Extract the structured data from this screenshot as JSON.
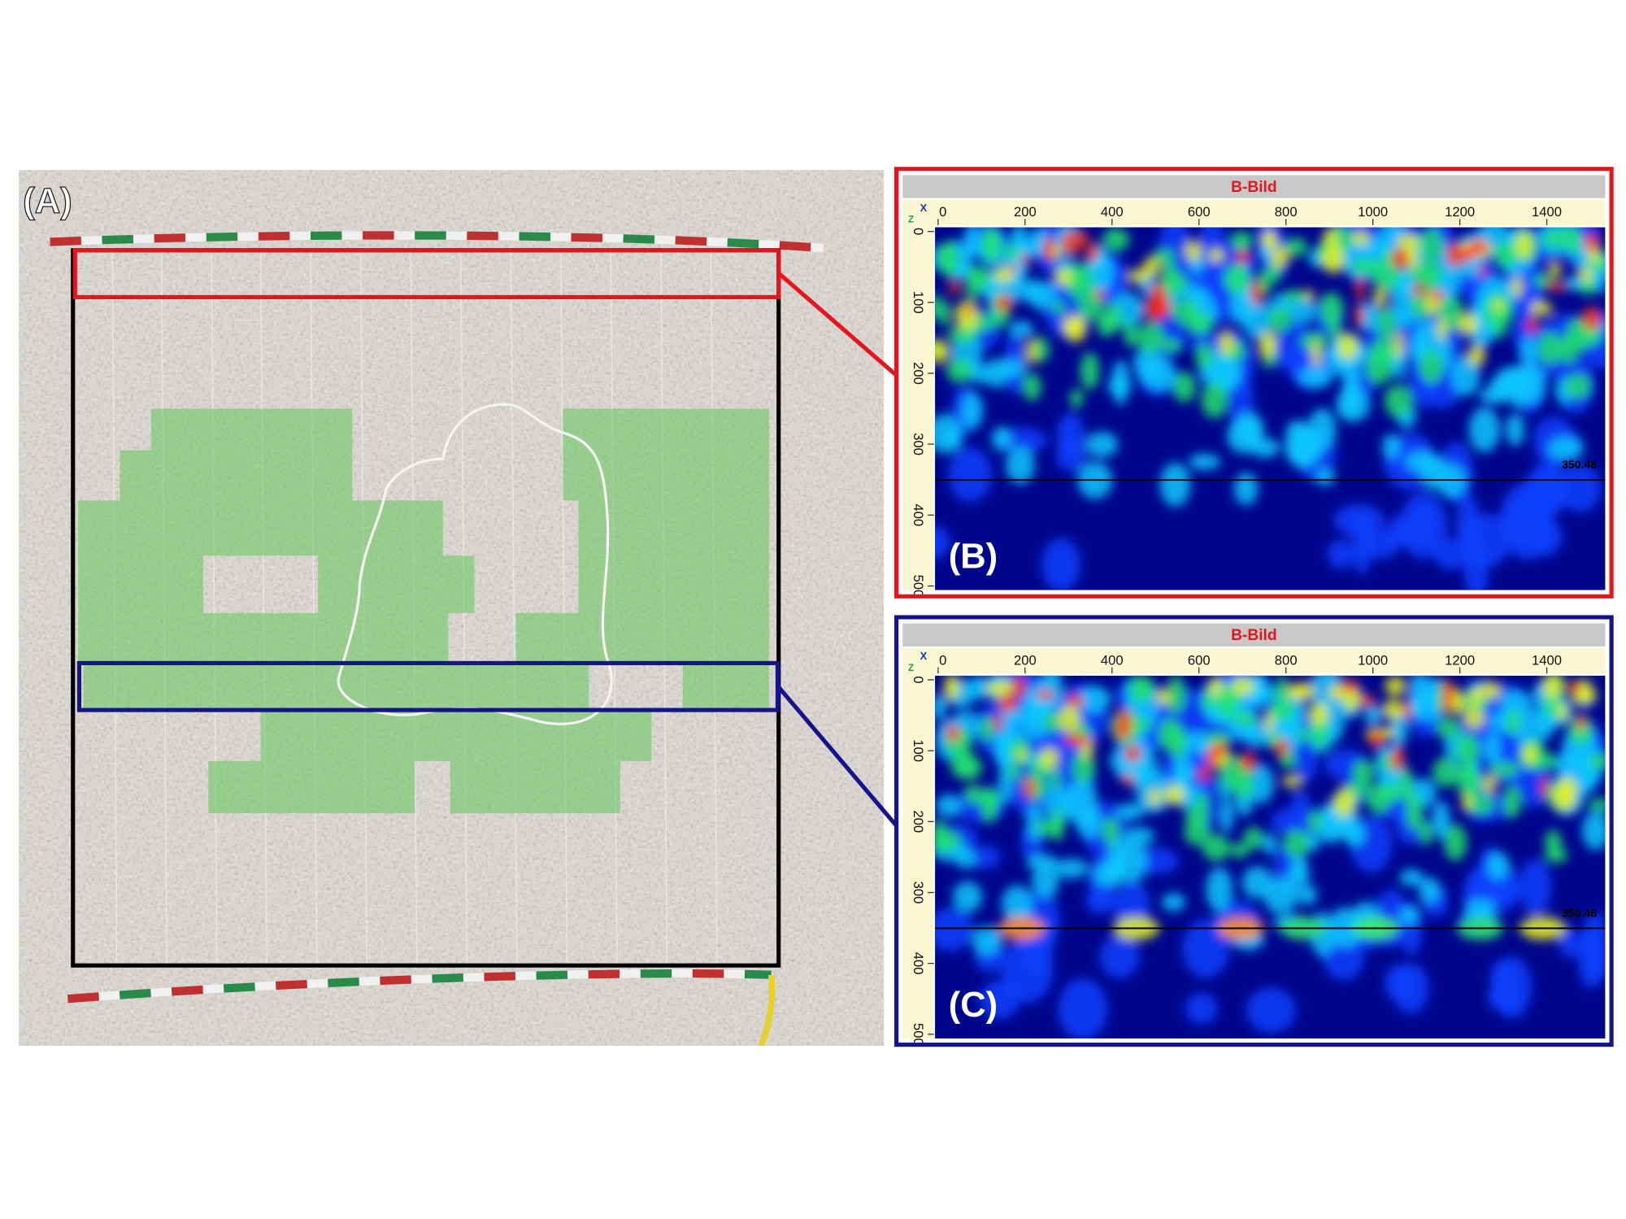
{
  "photo": {
    "label": "(A)"
  },
  "panels": [
    {
      "label": "(B)",
      "title": "B-Bild",
      "x_axis": "X",
      "z_axis": "Z",
      "x_ticks": [
        0,
        200,
        400,
        600,
        800,
        1000,
        1200,
        1400
      ],
      "y_ticks": [
        0,
        100,
        200,
        300,
        400,
        500
      ],
      "marker": 350.48,
      "color": "#e8141c"
    },
    {
      "label": "(C)",
      "title": "B-Bild",
      "x_axis": "X",
      "z_axis": "Z",
      "x_ticks": [
        0,
        200,
        400,
        600,
        800,
        1000,
        1200,
        1400
      ],
      "y_ticks": [
        0,
        100,
        200,
        300,
        400,
        500
      ],
      "marker": 350.48,
      "color": "#14148c"
    }
  ]
}
